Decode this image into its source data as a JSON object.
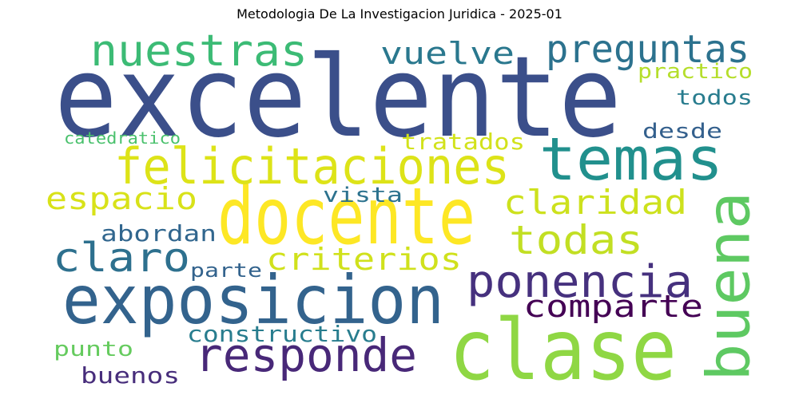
{
  "chart_data": {
    "type": "wordcloud",
    "title": "Metodologia De La Investigacion Juridica - 2025-01",
    "words": [
      {
        "text": "excelente",
        "color": "#3b4f8a"
      },
      {
        "text": "docente",
        "color": "#fde725"
      },
      {
        "text": "clase",
        "color": "#8fd744"
      },
      {
        "text": "exposicion",
        "color": "#33638d"
      },
      {
        "text": "temas",
        "color": "#21908d"
      },
      {
        "text": "buena",
        "color": "#5ec962"
      },
      {
        "text": "felicitaciones",
        "color": "#dde318"
      },
      {
        "text": "responde",
        "color": "#482878"
      },
      {
        "text": "ponencia",
        "color": "#46317e"
      },
      {
        "text": "nuestras",
        "color": "#3cbb75"
      },
      {
        "text": "preguntas",
        "color": "#2c728e"
      },
      {
        "text": "claro",
        "color": "#2d708e"
      },
      {
        "text": "todas",
        "color": "#c2df23"
      },
      {
        "text": "claridad",
        "color": "#cde11d"
      },
      {
        "text": "comparte",
        "color": "#440154"
      },
      {
        "text": "criterios",
        "color": "#d0e11c"
      },
      {
        "text": "espacio",
        "color": "#d8e219"
      },
      {
        "text": "vuelve",
        "color": "#2a788e"
      },
      {
        "text": "tratados",
        "color": "#d2e21b"
      },
      {
        "text": "constructivo",
        "color": "#287d8e"
      },
      {
        "text": "buenos",
        "color": "#472d7b"
      },
      {
        "text": "abordan",
        "color": "#31668e"
      },
      {
        "text": "desde",
        "color": "#34608d"
      },
      {
        "text": "todos",
        "color": "#287c8e"
      },
      {
        "text": "practico",
        "color": "#b5de2b"
      },
      {
        "text": "punto",
        "color": "#65cb5e"
      },
      {
        "text": "vista",
        "color": "#2c728e"
      },
      {
        "text": "parte",
        "color": "#33638d"
      },
      {
        "text": "catedratico",
        "color": "#4ac16d"
      }
    ]
  }
}
